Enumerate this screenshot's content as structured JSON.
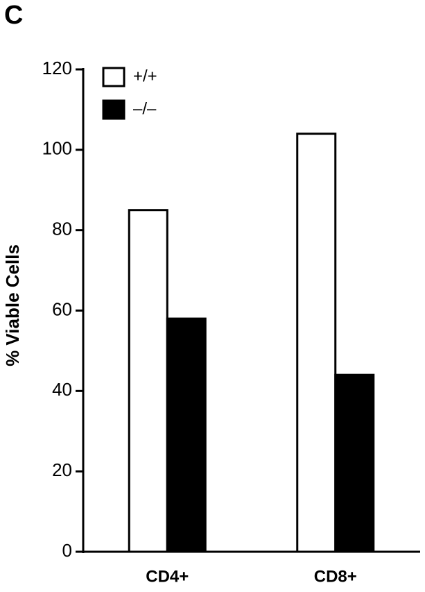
{
  "chart_data": {
    "type": "bar",
    "panel_label": "C",
    "y_label": "% Viable Cells",
    "categories": [
      "CD4+",
      "CD8+"
    ],
    "series": [
      {
        "name": "+/+",
        "color": "#ffffff",
        "values": [
          85,
          104
        ]
      },
      {
        "name": "–/–",
        "color": "#000000",
        "values": [
          58,
          44
        ]
      }
    ],
    "ylim": [
      0,
      120
    ],
    "yticks": [
      0,
      20,
      40,
      60,
      80,
      100,
      120
    ],
    "legend": "upper left"
  }
}
